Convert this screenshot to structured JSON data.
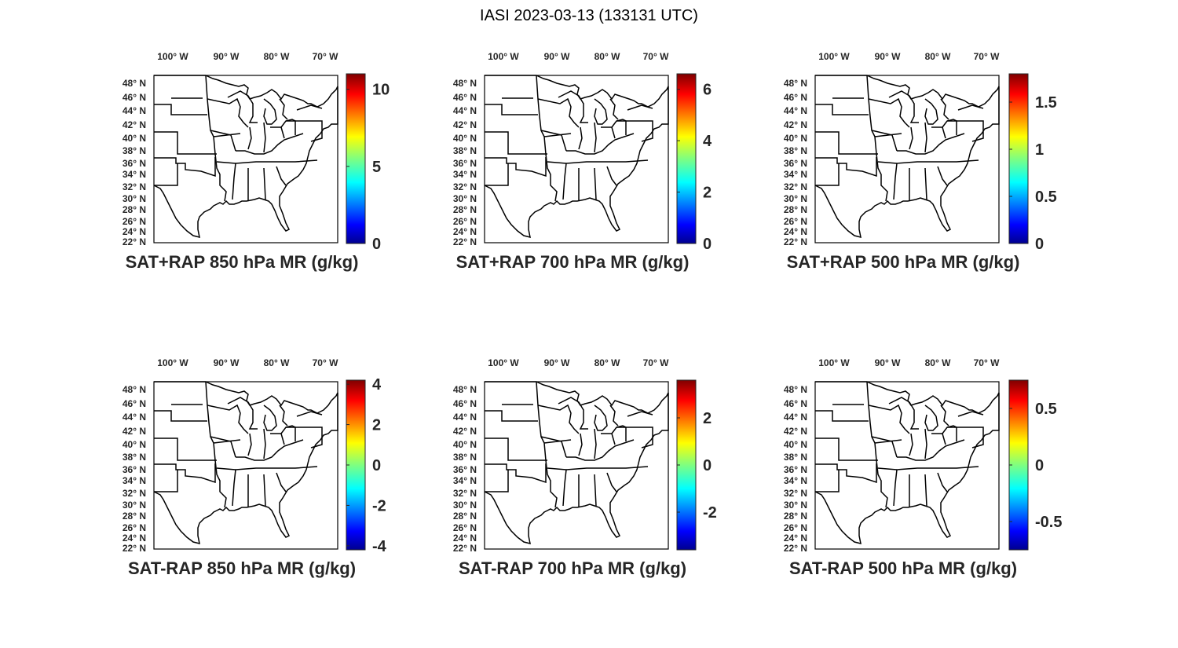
{
  "title": "IASI 2023-03-13 (133131 UTC)",
  "lon_ticks": [
    "100",
    "90",
    "80",
    "70"
  ],
  "lon_suffix": "W",
  "lat_ticks": [
    "48",
    "46",
    "44",
    "42",
    "40",
    "38",
    "36",
    "34",
    "32",
    "30",
    "28",
    "26",
    "24",
    "22"
  ],
  "lat_suffix": "N",
  "panels": [
    {
      "label": "SAT+RAP 850 hPa MR (g/kg)",
      "cbar_ticks": [
        "10",
        "5",
        "0"
      ],
      "cbar_range": [
        0,
        11
      ]
    },
    {
      "label": "SAT+RAP 700 hPa MR (g/kg)",
      "cbar_ticks": [
        "6",
        "4",
        "2",
        "0"
      ],
      "cbar_range": [
        0,
        6.6
      ]
    },
    {
      "label": "SAT+RAP 500 hPa MR (g/kg)",
      "cbar_ticks": [
        "1.5",
        "1",
        "0.5",
        "0"
      ],
      "cbar_range": [
        0,
        1.8
      ]
    },
    {
      "label": "SAT-RAP 850 hPa MR (g/kg)",
      "cbar_ticks": [
        "4",
        "2",
        "0",
        "-2",
        "-4"
      ],
      "cbar_range": [
        -4.2,
        4.2
      ]
    },
    {
      "label": "SAT-RAP 700 hPa MR (g/kg)",
      "cbar_ticks": [
        "2",
        "0",
        "-2"
      ],
      "cbar_range": [
        -3.6,
        3.6
      ]
    },
    {
      "label": "SAT-RAP 500 hPa MR (g/kg)",
      "cbar_ticks": [
        "0.5",
        "0",
        "-0.5"
      ],
      "cbar_range": [
        -0.75,
        0.75
      ]
    }
  ],
  "colormap": "jet"
}
